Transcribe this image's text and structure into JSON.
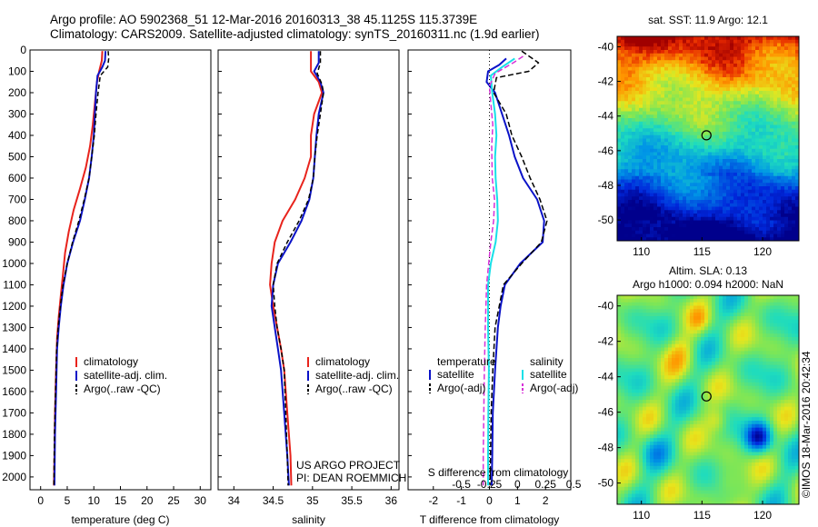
{
  "header": {
    "line1": "Argo profile: AO 5902368_51 12-Mar-2016 20160313_38 45.1125S 115.3739E",
    "line2": "Climatology: CARS2009. Satellite-adjusted climatology: synTS_20160311.nc (1.9d earlier)"
  },
  "colors": {
    "climatology": "#e8231c",
    "satellite": "#0a12c8",
    "argo": "#000000",
    "sat_salinity": "#18e0e8",
    "argo_salinity": "#d830d8"
  },
  "chart_data": [
    {
      "id": "temperature",
      "type": "line",
      "xlabel": "temperature (deg C)",
      "ylabel": "",
      "xlim": [
        -2,
        32
      ],
      "ylim": [
        2060,
        0
      ],
      "xticks": [
        0,
        5,
        10,
        15,
        20,
        25,
        30
      ],
      "yticks": [
        0,
        100,
        200,
        300,
        400,
        500,
        600,
        700,
        800,
        900,
        1000,
        1100,
        1200,
        1300,
        1400,
        1500,
        1600,
        1700,
        1800,
        1900,
        2000
      ],
      "legend": [
        "climatology",
        "satellite-adj. clim.",
        "Argo(..raw -QC)"
      ],
      "series": [
        {
          "name": "climatology",
          "color": "#e8231c",
          "width": 2,
          "points": [
            [
              11.6,
              5
            ],
            [
              11.5,
              50
            ],
            [
              11,
              100
            ],
            [
              10.6,
              150
            ],
            [
              10.2,
              250
            ],
            [
              9.8,
              350
            ],
            [
              9.3,
              450
            ],
            [
              8.5,
              550
            ],
            [
              7.4,
              650
            ],
            [
              6.2,
              750
            ],
            [
              5.3,
              850
            ],
            [
              4.6,
              950
            ],
            [
              4.2,
              1050
            ],
            [
              3.8,
              1150
            ],
            [
              3.4,
              1250
            ],
            [
              3.1,
              1350
            ],
            [
              2.9,
              1500
            ],
            [
              2.7,
              1700
            ],
            [
              2.6,
              1900
            ],
            [
              2.5,
              2040
            ]
          ]
        },
        {
          "name": "satellite-adj. clim.",
          "color": "#0a12c8",
          "width": 2,
          "points": [
            [
              12.2,
              5
            ],
            [
              12.1,
              50
            ],
            [
              11.6,
              80
            ],
            [
              10.7,
              120
            ],
            [
              10.4,
              200
            ],
            [
              10.2,
              300
            ],
            [
              10,
              400
            ],
            [
              9.6,
              500
            ],
            [
              9.1,
              600
            ],
            [
              8.3,
              700
            ],
            [
              7.4,
              800
            ],
            [
              6.1,
              900
            ],
            [
              5,
              1000
            ],
            [
              4.3,
              1100
            ],
            [
              3.8,
              1200
            ],
            [
              3.4,
              1300
            ],
            [
              3.1,
              1400
            ],
            [
              2.9,
              1600
            ],
            [
              2.7,
              1800
            ],
            [
              2.6,
              2040
            ]
          ]
        },
        {
          "name": "Argo(..raw -QC)",
          "color": "#000000",
          "width": 1.5,
          "dash": "5,3",
          "points": [
            [
              12.7,
              5
            ],
            [
              12.8,
              40
            ],
            [
              12.6,
              80
            ],
            [
              11.2,
              120
            ],
            [
              10.8,
              200
            ],
            [
              10.4,
              300
            ],
            [
              10.1,
              400
            ],
            [
              9.6,
              500
            ],
            [
              9.1,
              600
            ],
            [
              8.2,
              700
            ],
            [
              7.2,
              800
            ],
            [
              6,
              900
            ],
            [
              5,
              1000
            ],
            [
              4.2,
              1100
            ],
            [
              3.7,
              1200
            ],
            [
              3.3,
              1300
            ],
            [
              3,
              1400
            ],
            [
              2.8,
              1600
            ],
            [
              2.6,
              1800
            ],
            [
              2.5,
              2040
            ]
          ]
        }
      ]
    },
    {
      "id": "salinity",
      "type": "line",
      "xlabel": "salinity",
      "ylabel": "",
      "xlim": [
        33.8,
        36.1
      ],
      "ylim": [
        2060,
        0
      ],
      "xticks": [
        34,
        34.5,
        35,
        35.5,
        36
      ],
      "legend": [
        "climatology",
        "satellite-adj. clim.",
        "Argo(..raw -QC)"
      ],
      "annotations": [
        "US ARGO PROJECT",
        "PI: DEAN ROEMMICH"
      ],
      "series": [
        {
          "name": "climatology",
          "color": "#e8231c",
          "width": 2,
          "points": [
            [
              34.98,
              5
            ],
            [
              34.98,
              100
            ],
            [
              35.08,
              150
            ],
            [
              35.12,
              200
            ],
            [
              35.02,
              300
            ],
            [
              34.98,
              400
            ],
            [
              34.98,
              500
            ],
            [
              34.9,
              600
            ],
            [
              34.78,
              700
            ],
            [
              34.62,
              800
            ],
            [
              34.52,
              900
            ],
            [
              34.48,
              1000
            ],
            [
              34.46,
              1100
            ],
            [
              34.5,
              1200
            ],
            [
              34.55,
              1300
            ],
            [
              34.6,
              1400
            ],
            [
              34.64,
              1500
            ],
            [
              34.68,
              1700
            ],
            [
              34.72,
              1900
            ],
            [
              34.73,
              2040
            ]
          ]
        },
        {
          "name": "satellite-adj. clim.",
          "color": "#0a12c8",
          "width": 2,
          "points": [
            [
              35.08,
              5
            ],
            [
              35.08,
              60
            ],
            [
              35.02,
              100
            ],
            [
              35.1,
              150
            ],
            [
              35.14,
              200
            ],
            [
              35.08,
              300
            ],
            [
              35.05,
              400
            ],
            [
              35.03,
              500
            ],
            [
              35.01,
              600
            ],
            [
              34.96,
              700
            ],
            [
              34.86,
              800
            ],
            [
              34.72,
              900
            ],
            [
              34.56,
              1000
            ],
            [
              34.5,
              1100
            ],
            [
              34.48,
              1200
            ],
            [
              34.52,
              1300
            ],
            [
              34.56,
              1400
            ],
            [
              34.6,
              1500
            ],
            [
              34.64,
              1700
            ],
            [
              34.68,
              1900
            ],
            [
              34.7,
              2040
            ]
          ]
        },
        {
          "name": "Argo(..raw -QC)",
          "color": "#000000",
          "width": 1.5,
          "dash": "5,3",
          "points": [
            [
              35.1,
              5
            ],
            [
              35.1,
              60
            ],
            [
              35.06,
              110
            ],
            [
              35.12,
              160
            ],
            [
              35.14,
              200
            ],
            [
              35.1,
              300
            ],
            [
              35.06,
              400
            ],
            [
              35.03,
              500
            ],
            [
              35.01,
              600
            ],
            [
              34.95,
              700
            ],
            [
              34.83,
              800
            ],
            [
              34.68,
              900
            ],
            [
              34.55,
              1000
            ],
            [
              34.5,
              1100
            ],
            [
              34.52,
              1200
            ],
            [
              34.55,
              1300
            ],
            [
              34.6,
              1400
            ],
            [
              34.64,
              1500
            ],
            [
              34.66,
              1700
            ],
            [
              34.68,
              1900
            ],
            [
              34.69,
              2040
            ]
          ]
        }
      ]
    },
    {
      "id": "difference",
      "type": "line",
      "xlabel": "T difference from climatology",
      "xlabel2": "S difference from climatology",
      "ylabel": "",
      "xlim": [
        -2.9,
        2.9
      ],
      "ylim": [
        2060,
        0
      ],
      "xticks": [
        -2,
        -1,
        0,
        1,
        2
      ],
      "xticks_s": [
        "-0.5",
        "-0.25",
        "0",
        "0.25",
        "0.5"
      ],
      "legend_temperature_title": "temperature",
      "legend_salinity_title": "salinity",
      "legend_temperature": [
        "satellite",
        "Argo(-adj)"
      ],
      "legend_salinity": [
        "satellite",
        "Argo(-adj)"
      ],
      "series": [
        {
          "name": "T satellite",
          "color": "#0a12c8",
          "width": 2,
          "points": [
            [
              0.6,
              40
            ],
            [
              0.35,
              70
            ],
            [
              -0.05,
              100
            ],
            [
              -0.1,
              150
            ],
            [
              0.2,
              200
            ],
            [
              0.45,
              300
            ],
            [
              0.7,
              400
            ],
            [
              0.9,
              500
            ],
            [
              1.2,
              600
            ],
            [
              1.7,
              700
            ],
            [
              1.95,
              800
            ],
            [
              1.9,
              900
            ],
            [
              1.1,
              1000
            ],
            [
              0.55,
              1100
            ],
            [
              0.4,
              1200
            ],
            [
              0.3,
              1300
            ],
            [
              0.2,
              1500
            ],
            [
              0.12,
              1700
            ],
            [
              0.1,
              1900
            ],
            [
              0.08,
              2040
            ]
          ]
        },
        {
          "name": "T Argo(-adj)",
          "color": "#000000",
          "width": 1.5,
          "dash": "6,3",
          "points": [
            [
              1.15,
              5
            ],
            [
              1.75,
              60
            ],
            [
              1.4,
              100
            ],
            [
              0.25,
              130
            ],
            [
              0.15,
              200
            ],
            [
              0.6,
              300
            ],
            [
              0.8,
              400
            ],
            [
              1.15,
              500
            ],
            [
              1.45,
              600
            ],
            [
              1.8,
              700
            ],
            [
              2.05,
              800
            ],
            [
              1.85,
              900
            ],
            [
              1.15,
              1000
            ],
            [
              0.5,
              1100
            ],
            [
              0.35,
              1200
            ],
            [
              0.2,
              1300
            ],
            [
              0.12,
              1500
            ],
            [
              0.06,
              1700
            ],
            [
              0.04,
              1900
            ],
            [
              0.02,
              2040
            ]
          ]
        },
        {
          "name": "S satellite",
          "color": "#18e0e8",
          "width": 2,
          "points": [
            [
              0.9,
              40
            ],
            [
              0.45,
              80
            ],
            [
              0.05,
              120
            ],
            [
              0.1,
              200
            ],
            [
              0.2,
              300
            ],
            [
              0.25,
              400
            ],
            [
              0.2,
              500
            ],
            [
              0.22,
              600
            ],
            [
              0.28,
              700
            ],
            [
              0.3,
              800
            ],
            [
              0.22,
              900
            ],
            [
              0.05,
              1000
            ],
            [
              -0.05,
              1100
            ],
            [
              -0.05,
              1300
            ],
            [
              -0.02,
              1500
            ],
            [
              -0.04,
              1700
            ],
            [
              -0.05,
              1900
            ],
            [
              -0.05,
              2040
            ]
          ]
        },
        {
          "name": "S Argo(-adj)",
          "color": "#d830d8",
          "width": 1.5,
          "dash": "6,3",
          "points": [
            [
              1.2,
              30
            ],
            [
              0.85,
              60
            ],
            [
              0.2,
              110
            ],
            [
              0.0,
              170
            ],
            [
              0.05,
              250
            ],
            [
              0.12,
              350
            ],
            [
              0.08,
              450
            ],
            [
              0.1,
              600
            ],
            [
              0.18,
              700
            ],
            [
              0.15,
              800
            ],
            [
              0.05,
              900
            ],
            [
              -0.1,
              1100
            ],
            [
              -0.15,
              1300
            ],
            [
              -0.18,
              1500
            ],
            [
              -0.2,
              1700
            ],
            [
              -0.22,
              1900
            ],
            [
              -0.22,
              2040
            ]
          ]
        }
      ]
    },
    {
      "id": "sst_map",
      "type": "heatmap",
      "title": "sat. SST: 11.9 Argo: 12.1",
      "xlim": [
        108,
        123
      ],
      "ylim": [
        -51.2,
        -39.4
      ],
      "xticks": [
        110,
        115,
        120
      ],
      "yticks": [
        -40,
        -42,
        -44,
        -46,
        -48,
        -50
      ],
      "marker": [
        115.37,
        -45.11
      ]
    },
    {
      "id": "sla_map",
      "type": "heatmap",
      "title": "Altim. SLA: 0.13",
      "subtitle": "Argo h1000: 0.094 h2000: NaN",
      "xlim": [
        108,
        123
      ],
      "ylim": [
        -51.2,
        -39.4
      ],
      "xticks": [
        110,
        115,
        120
      ],
      "yticks": [
        -40,
        -42,
        -44,
        -46,
        -48,
        -50
      ],
      "marker": [
        115.37,
        -45.11
      ]
    }
  ],
  "side_stamp": "©IMOS 18-Mar-2016 20:42:34"
}
